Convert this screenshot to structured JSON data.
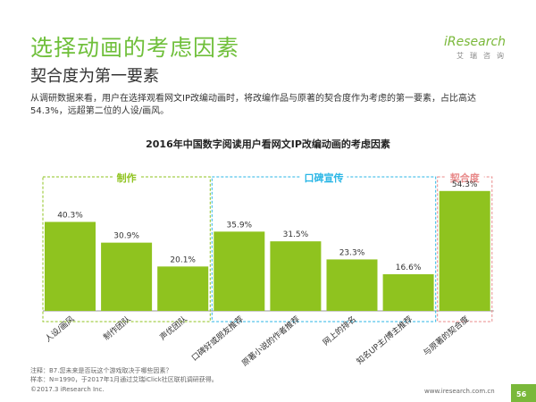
{
  "header": {
    "title": "选择动画的考虑因素",
    "subtitle": "契合度为第一要素",
    "description": "从调研数据来看，用户在选择观看网文IP改编动画时，将改编作品与原著的契合度作为考虑的第一要素，占比高达54.3%，远超第二位的人设/画风。"
  },
  "logo": {
    "name": "iResearch",
    "sub": "艾瑞咨询"
  },
  "colors": {
    "accent": "#7ab83a",
    "bar": "#8fc31f",
    "group1": "#8fc31f",
    "group2": "#29b6e6",
    "group3": "#e88a8a"
  },
  "chart_data": {
    "type": "bar",
    "title": "2016年中国数字阅读用户看网文IP改编动画的考虑因素",
    "categories": [
      "人设/画风",
      "制作团队",
      "声优团队",
      "口碑好或朋友推荐",
      "原著小说的作者推荐",
      "网上的排名",
      "知名UP主/博主推荐",
      "与原著的契合度"
    ],
    "values": [
      40.3,
      30.9,
      20.1,
      35.9,
      31.5,
      23.3,
      16.6,
      54.3
    ],
    "value_labels": [
      "40.3%",
      "30.9%",
      "20.1%",
      "35.9%",
      "31.5%",
      "23.3%",
      "16.6%",
      "54.3%"
    ],
    "ylim": [
      0,
      70
    ],
    "groups": [
      {
        "label": "制作",
        "from": 0,
        "to": 2,
        "color": "#8fc31f"
      },
      {
        "label": "口碑宣传",
        "from": 3,
        "to": 6,
        "color": "#29b6e6"
      },
      {
        "label": "契合度",
        "from": 7,
        "to": 7,
        "color": "#e88a8a"
      }
    ],
    "grid": false,
    "legend": "none"
  },
  "footer": {
    "note": "注释：B7.您未来是否玩这个游戏取决于哪些因素？",
    "sample": "样本：N=1990，于2017年1月通过艾瑞iClick社区联机调研获得。",
    "copyright": "©2017.3 iResearch Inc.",
    "site": "www.iresearch.com.cn",
    "page": "56"
  }
}
